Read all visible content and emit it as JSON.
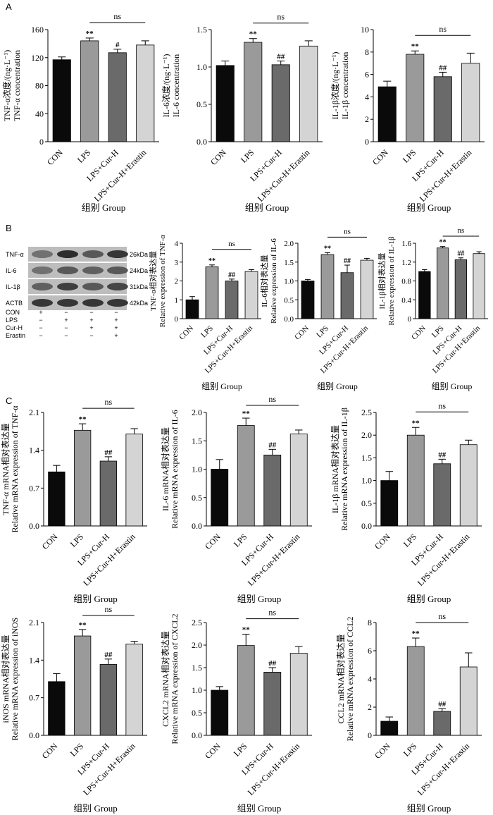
{
  "panel_labels": [
    "A",
    "B",
    "C"
  ],
  "group_categories": [
    "CON",
    "LPS",
    "LPS+Cur-H",
    "LPS+Cur-H+Erastin"
  ],
  "bar_colors": [
    "#0a0a0a",
    "#9a9a9a",
    "#6a6a6a",
    "#d4d4d4"
  ],
  "xlabel": "组别 Group",
  "ns_label": "ns",
  "western_blot": {
    "bands": [
      {
        "name": "TNF-α",
        "size": "26kDa"
      },
      {
        "name": "IL-6",
        "size": "24kDa"
      },
      {
        "name": "IL-1β",
        "size": "31kDa"
      },
      {
        "name": "ACTB",
        "size": "42kDa"
      }
    ],
    "treatments": [
      {
        "name": "CON",
        "signs": [
          "+",
          "−",
          "−",
          "−"
        ]
      },
      {
        "name": "LPS",
        "signs": [
          "−",
          "+",
          "+",
          "+"
        ]
      },
      {
        "name": "Cur-H",
        "signs": [
          "−",
          "−",
          "+",
          "+"
        ]
      },
      {
        "name": "Erastin",
        "signs": [
          "−",
          "−",
          "−",
          "+"
        ]
      }
    ]
  },
  "chart_data": [
    {
      "type": "bar",
      "panel": "A",
      "categories": [
        "CON",
        "LPS",
        "LPS+Cur-H",
        "LPS+Cur-H+Erastin"
      ],
      "values": [
        117,
        144,
        127,
        138
      ],
      "errors": [
        4,
        4,
        5,
        6
      ],
      "annotations": [
        "",
        "**",
        "#",
        ""
      ],
      "ns": "ns",
      "ylabel": [
        "TNF-α浓度/(ng·L⁻¹)",
        "TNF-α concentration"
      ],
      "xlabel": "组别 Group",
      "ylim": [
        0,
        160
      ],
      "yticks": [
        "0",
        "40",
        "80",
        "120",
        "160"
      ]
    },
    {
      "type": "bar",
      "panel": "A",
      "categories": [
        "CON",
        "LPS",
        "LPS+Cur-H",
        "LPS+Cur-H+Erastin"
      ],
      "values": [
        1.02,
        1.33,
        1.03,
        1.28
      ],
      "errors": [
        0.06,
        0.05,
        0.05,
        0.07
      ],
      "annotations": [
        "",
        "**",
        "##",
        ""
      ],
      "ns": "ns",
      "ylabel": [
        "IL-6浓度/(ng·L⁻¹)",
        "IL-6 concentration"
      ],
      "xlabel": "组别 Group",
      "ylim": [
        0,
        1.5
      ],
      "yticks": [
        "0.0",
        "0.5",
        "1.0",
        "1.5"
      ]
    },
    {
      "type": "bar",
      "panel": "A",
      "categories": [
        "CON",
        "LPS",
        "LPS+Cur-H",
        "LPS+Cur-H+Erastin"
      ],
      "values": [
        4.9,
        7.8,
        5.8,
        7.0
      ],
      "errors": [
        0.5,
        0.3,
        0.4,
        0.9
      ],
      "annotations": [
        "",
        "**",
        "##",
        ""
      ],
      "ns": "ns",
      "ylabel": [
        "IL-1β浓度/(ng·L⁻¹)",
        "IL-1β concentration"
      ],
      "xlabel": "组别 Group",
      "ylim": [
        0,
        10
      ],
      "yticks": [
        "0",
        "2",
        "4",
        "6",
        "8",
        "10"
      ]
    },
    {
      "type": "bar",
      "panel": "B",
      "categories": [
        "CON",
        "LPS",
        "LPS+Cur-H",
        "LPS+Cur-H+Erastin"
      ],
      "values": [
        1.0,
        2.75,
        2.0,
        2.5
      ],
      "errors": [
        0.17,
        0.1,
        0.1,
        0.1
      ],
      "annotations": [
        "",
        "**",
        "##",
        ""
      ],
      "ns": "ns",
      "ylabel": [
        "TNF-α相对表达量",
        "Relative expression of TNF-α"
      ],
      "xlabel": "组别 Group",
      "ylim": [
        0,
        4
      ],
      "yticks": [
        "0",
        "1",
        "2",
        "3",
        "4"
      ]
    },
    {
      "type": "bar",
      "panel": "B",
      "categories": [
        "CON",
        "LPS",
        "LPS+Cur-H",
        "LPS+Cur-H+Erastin"
      ],
      "values": [
        1.0,
        1.7,
        1.22,
        1.55
      ],
      "errors": [
        0.04,
        0.05,
        0.2,
        0.05
      ],
      "annotations": [
        "",
        "**",
        "##",
        ""
      ],
      "ns": "ns",
      "ylabel": [
        "IL-6相对表达量",
        "Relative expression of IL-6"
      ],
      "xlabel": "组别 Group",
      "ylim": [
        0,
        2.0
      ],
      "yticks": [
        "0.0",
        "0.5",
        "1.0",
        "1.5",
        "2.0"
      ]
    },
    {
      "type": "bar",
      "panel": "B",
      "categories": [
        "CON",
        "LPS",
        "LPS+Cur-H",
        "LPS+Cur-H+Erastin"
      ],
      "values": [
        1.0,
        1.5,
        1.25,
        1.38
      ],
      "errors": [
        0.04,
        0.03,
        0.04,
        0.04
      ],
      "annotations": [
        "",
        "**",
        "##",
        ""
      ],
      "ns": "ns",
      "ylabel": [
        "IL-1β相对表达量",
        "Relative expression of IL-1β"
      ],
      "xlabel": "组别 Group",
      "ylim": [
        0,
        1.6
      ],
      "yticks": [
        "0",
        "0.4",
        "0.8",
        "1.2",
        "1.6"
      ]
    },
    {
      "type": "bar",
      "panel": "C",
      "categories": [
        "CON",
        "LPS",
        "LPS+Cur-H",
        "LPS+Cur-H+Erastin"
      ],
      "values": [
        1.0,
        1.77,
        1.2,
        1.7
      ],
      "errors": [
        0.12,
        0.12,
        0.08,
        0.1
      ],
      "annotations": [
        "",
        "**",
        "##",
        ""
      ],
      "ns": "ns",
      "ylabel": [
        "TNF-α mRNA相对表达量",
        "Relative mRNA expression of TNF-α"
      ],
      "xlabel": "组别 Group",
      "ylim": [
        0,
        2.1
      ],
      "yticks": [
        "0.0",
        "0.7",
        "1.4",
        "2.1"
      ]
    },
    {
      "type": "bar",
      "panel": "C",
      "categories": [
        "CON",
        "LPS",
        "LPS+Cur-H",
        "LPS+Cur-H+Erastin"
      ],
      "values": [
        1.0,
        1.77,
        1.25,
        1.62
      ],
      "errors": [
        0.17,
        0.13,
        0.1,
        0.07
      ],
      "annotations": [
        "",
        "**",
        "##",
        ""
      ],
      "ns": "ns",
      "ylabel": [
        "IL-6 mRNA相对表达量",
        "Relative mRNA expression of IL-6"
      ],
      "xlabel": "组别 Group",
      "ylim": [
        0,
        2.0
      ],
      "yticks": [
        "0.0",
        "0.5",
        "1.0",
        "1.5",
        "2.0"
      ]
    },
    {
      "type": "bar",
      "panel": "C",
      "categories": [
        "CON",
        "LPS",
        "LPS+Cur-H",
        "LPS+Cur-H+Erastin"
      ],
      "values": [
        1.0,
        2.0,
        1.37,
        1.79
      ],
      "errors": [
        0.2,
        0.17,
        0.1,
        0.1
      ],
      "annotations": [
        "",
        "**",
        "##",
        ""
      ],
      "ns": "ns",
      "ylabel": [
        "IL-1β mRNA相对表达量",
        "Relative mRNA expression of IL-1β"
      ],
      "xlabel": "组别 Group",
      "ylim": [
        0,
        2.5
      ],
      "yticks": [
        "0.0",
        "0.5",
        "1.0",
        "1.5",
        "2.0",
        "2.5"
      ]
    },
    {
      "type": "bar",
      "panel": "C",
      "categories": [
        "CON",
        "LPS",
        "LPS+Cur-H",
        "LPS+Cur-H+Erastin"
      ],
      "values": [
        1.0,
        1.85,
        1.32,
        1.7
      ],
      "errors": [
        0.15,
        0.12,
        0.1,
        0.05
      ],
      "annotations": [
        "",
        "**",
        "##",
        ""
      ],
      "ns": "ns",
      "ylabel": [
        "iNOS mRNA相对表达量",
        "Relative mRNA expression of iNOS"
      ],
      "xlabel": "组别 Group",
      "ylim": [
        0,
        2.1
      ],
      "yticks": [
        "0.0",
        "0.7",
        "1.4",
        "2.1"
      ]
    },
    {
      "type": "bar",
      "panel": "C",
      "categories": [
        "CON",
        "LPS",
        "LPS+Cur-H",
        "LPS+Cur-H+Erastin"
      ],
      "values": [
        1.0,
        1.99,
        1.4,
        1.82
      ],
      "errors": [
        0.08,
        0.25,
        0.1,
        0.15
      ],
      "annotations": [
        "",
        "**",
        "##",
        ""
      ],
      "ns": "ns",
      "ylabel": [
        "CXCL2 mRNA相对表达量",
        "Relative mRNA expression of CXCL2"
      ],
      "xlabel": "组别 Group",
      "ylim": [
        0,
        2.5
      ],
      "yticks": [
        "0.0",
        "0.5",
        "1.0",
        "1.5",
        "2.0",
        "2.5"
      ]
    },
    {
      "type": "bar",
      "panel": "C",
      "categories": [
        "CON",
        "LPS",
        "LPS+Cur-H",
        "LPS+Cur-H+Erastin"
      ],
      "values": [
        1.0,
        6.3,
        1.7,
        4.85
      ],
      "errors": [
        0.3,
        0.6,
        0.2,
        1.0
      ],
      "annotations": [
        "",
        "**",
        "##",
        ""
      ],
      "ns": "ns",
      "ylabel": [
        "CCL2 mRNA相对表达量",
        "Relative mRNA expression of CCL2"
      ],
      "xlabel": "组别 Group",
      "ylim": [
        0,
        8
      ],
      "yticks": [
        "0",
        "2",
        "4",
        "6",
        "8"
      ]
    }
  ]
}
